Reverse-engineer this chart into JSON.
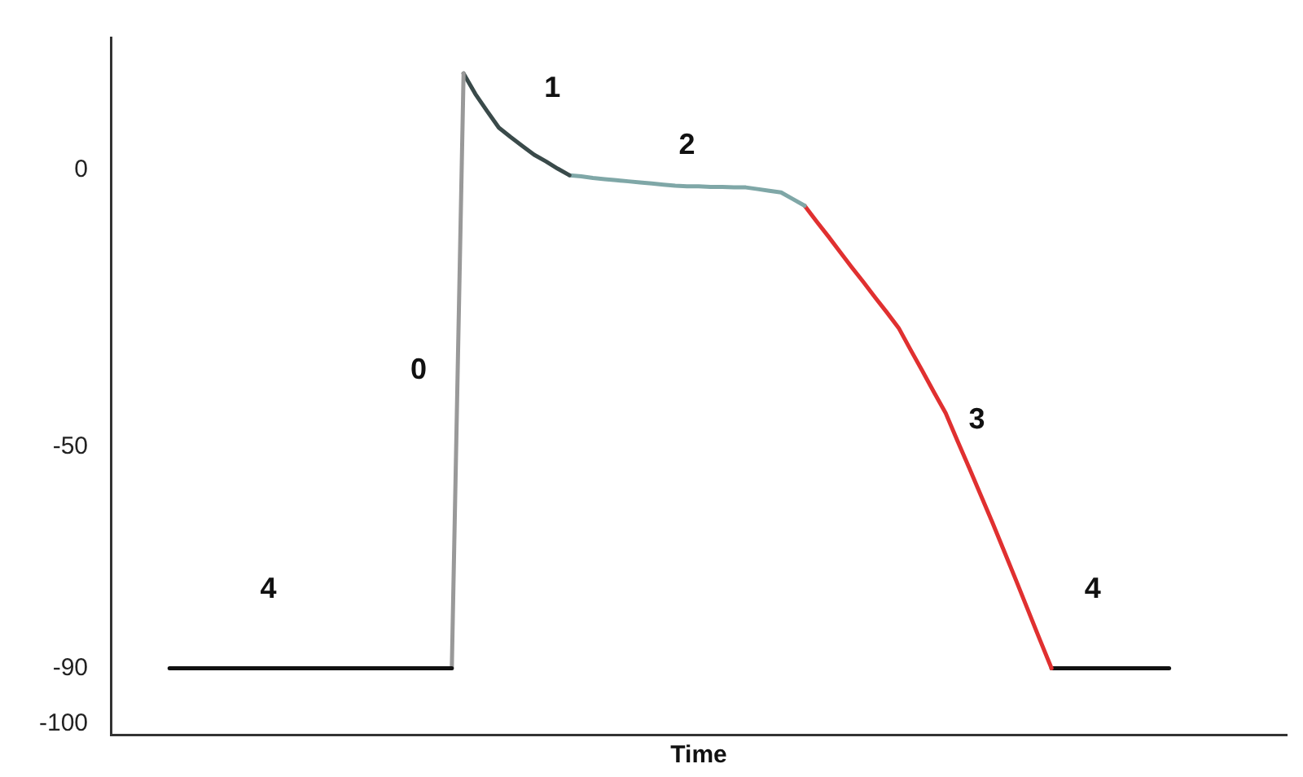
{
  "chart_data": {
    "type": "line",
    "xlabel": "Time",
    "ylim": [
      -102,
      24
    ],
    "yticks": [
      0,
      -50,
      -90,
      -100
    ],
    "tick_labels": "y",
    "grid": false,
    "legend": false,
    "marker": "none",
    "line_style": "solid",
    "categories": [
      null,
      null,
      null,
      null,
      null,
      null,
      null,
      null,
      null,
      null,
      null,
      null,
      null,
      null,
      null,
      null,
      null,
      null,
      null,
      null,
      null,
      null,
      null,
      null,
      null,
      null,
      null,
      null,
      null,
      null,
      null,
      null,
      null,
      null,
      null,
      null,
      null,
      null,
      null,
      null,
      null,
      null,
      null,
      null,
      null,
      null,
      null,
      null,
      null,
      null,
      null,
      null,
      null,
      null,
      null,
      null,
      null,
      null,
      null,
      null,
      null,
      null,
      null,
      null,
      null,
      null,
      null,
      null,
      null,
      null,
      null,
      null,
      null,
      null,
      null,
      null,
      null,
      null,
      null,
      null,
      null,
      null,
      null,
      null,
      null,
      null,
      null,
      null,
      null,
      null,
      null,
      null,
      null,
      null,
      null,
      null,
      null,
      null,
      null,
      null,
      null
    ],
    "series": [
      {
        "color": "#111111",
        "values": [
          null,
          null,
          null,
          null,
          null,
          -90,
          -90,
          -90,
          -90,
          -90,
          -90,
          -90,
          -90,
          -90,
          -90,
          -90,
          -90,
          -90,
          -90,
          -90,
          -90,
          -90,
          -90,
          -90,
          -90,
          -90,
          -90,
          -90,
          -90,
          -90,
          null,
          null,
          null,
          null,
          null,
          null,
          null,
          null,
          null,
          null,
          null,
          null,
          null,
          null,
          null,
          null,
          null,
          null,
          null,
          null,
          null,
          null,
          null,
          null,
          null,
          null,
          null,
          null,
          null,
          null,
          null,
          null,
          null,
          null,
          null,
          null,
          null,
          null,
          null,
          null,
          null,
          null,
          null,
          null,
          null,
          null,
          null,
          null,
          null,
          null,
          null,
          null,
          null,
          null,
          null,
          null,
          null,
          null,
          null,
          null,
          null,
          null,
          null,
          null,
          null,
          null,
          null,
          null,
          null,
          null,
          null
        ]
      },
      {
        "color": "#999999",
        "values": [
          null,
          null,
          null,
          null,
          null,
          null,
          null,
          null,
          null,
          null,
          null,
          null,
          null,
          null,
          null,
          null,
          null,
          null,
          null,
          null,
          null,
          null,
          null,
          null,
          null,
          null,
          null,
          null,
          null,
          -90,
          17.5,
          null,
          null,
          null,
          null,
          null,
          null,
          null,
          null,
          null,
          null,
          null,
          null,
          null,
          null,
          null,
          null,
          null,
          null,
          null,
          null,
          null,
          null,
          null,
          null,
          null,
          null,
          null,
          null,
          null,
          null,
          null,
          null,
          null,
          null,
          null,
          null,
          null,
          null,
          null,
          null,
          null,
          null,
          null,
          null,
          null,
          null,
          null,
          null,
          null,
          null,
          null,
          null,
          null,
          null,
          null,
          null,
          null,
          null,
          null,
          null,
          null,
          null,
          null,
          null,
          null,
          null,
          null,
          null,
          null,
          null
        ]
      },
      {
        "color": "#3a4a4a",
        "values": [
          null,
          null,
          null,
          null,
          null,
          null,
          null,
          null,
          null,
          null,
          null,
          null,
          null,
          null,
          null,
          null,
          null,
          null,
          null,
          null,
          null,
          null,
          null,
          null,
          null,
          null,
          null,
          null,
          null,
          null,
          17.5,
          13.8,
          10.7,
          7.7,
          6.0,
          4.4,
          2.8,
          1.6,
          0.3,
          -0.9,
          null,
          null,
          null,
          null,
          null,
          null,
          null,
          null,
          null,
          null,
          null,
          null,
          null,
          null,
          null,
          null,
          null,
          null,
          null,
          null,
          null,
          null,
          null,
          null,
          null,
          null,
          null,
          null,
          null,
          null,
          null,
          null,
          null,
          null,
          null,
          null,
          null,
          null,
          null,
          null,
          null,
          null,
          null,
          null,
          null,
          null,
          null,
          null,
          null,
          null,
          null,
          null,
          null,
          null,
          null,
          null,
          null,
          null,
          null,
          null,
          null
        ]
      },
      {
        "color": "#7fa7a7",
        "values": [
          null,
          null,
          null,
          null,
          null,
          null,
          null,
          null,
          null,
          null,
          null,
          null,
          null,
          null,
          null,
          null,
          null,
          null,
          null,
          null,
          null,
          null,
          null,
          null,
          null,
          null,
          null,
          null,
          null,
          null,
          null,
          null,
          null,
          null,
          null,
          null,
          null,
          null,
          null,
          -0.9,
          -1.1,
          -1.4,
          -1.6,
          -1.8,
          -2.0,
          -2.2,
          -2.4,
          -2.6,
          -2.8,
          -2.9,
          -2.9,
          -3.0,
          -3.0,
          -3.1,
          -3.1,
          -3.4,
          -3.7,
          -4,
          -5.2,
          -6.4,
          null,
          null,
          null,
          null,
          null,
          null,
          null,
          null,
          null,
          null,
          null,
          null,
          null,
          null,
          null,
          null,
          null,
          null,
          null,
          null,
          null,
          null,
          null,
          null,
          null,
          null,
          null,
          null,
          null,
          null,
          null,
          null,
          null,
          null,
          null,
          null,
          null,
          null,
          null,
          null,
          null
        ]
      },
      {
        "color": "#e03030",
        "values": [
          null,
          null,
          null,
          null,
          null,
          null,
          null,
          null,
          null,
          null,
          null,
          null,
          null,
          null,
          null,
          null,
          null,
          null,
          null,
          null,
          null,
          null,
          null,
          null,
          null,
          null,
          null,
          null,
          null,
          null,
          null,
          null,
          null,
          null,
          null,
          null,
          null,
          null,
          null,
          null,
          null,
          null,
          null,
          null,
          null,
          null,
          null,
          null,
          null,
          null,
          null,
          null,
          null,
          null,
          null,
          null,
          null,
          null,
          null,
          -6.4,
          -9.2,
          -11.9,
          -14.7,
          -17.5,
          -20.2,
          -23.0,
          -25.7,
          -28.5,
          -32.4,
          -36.2,
          -40.1,
          -43.9,
          -48.9,
          -53.8,
          -58.8,
          -63.8,
          -69.0,
          -74.2,
          -79.5,
          -84.8,
          -90,
          null,
          null,
          null,
          null,
          null,
          null,
          null,
          null,
          null,
          null,
          null,
          null,
          null,
          null,
          null,
          null,
          null,
          null,
          null,
          null
        ]
      },
      {
        "color": "#111111",
        "values": [
          null,
          null,
          null,
          null,
          null,
          null,
          null,
          null,
          null,
          null,
          null,
          null,
          null,
          null,
          null,
          null,
          null,
          null,
          null,
          null,
          null,
          null,
          null,
          null,
          null,
          null,
          null,
          null,
          null,
          null,
          null,
          null,
          null,
          null,
          null,
          null,
          null,
          null,
          null,
          null,
          null,
          null,
          null,
          null,
          null,
          null,
          null,
          null,
          null,
          null,
          null,
          null,
          null,
          null,
          null,
          null,
          null,
          null,
          null,
          null,
          null,
          null,
          null,
          null,
          null,
          null,
          null,
          null,
          null,
          null,
          null,
          null,
          null,
          null,
          null,
          null,
          null,
          null,
          null,
          null,
          -90,
          -90,
          -90,
          -90,
          -90,
          -90,
          -90,
          -90,
          -90,
          -90,
          -90,
          null,
          null,
          null,
          null,
          null,
          null,
          null,
          null,
          null,
          null
        ]
      }
    ],
    "annotations": [
      "4",
      "0",
      "1",
      "2",
      "3",
      "4"
    ]
  }
}
